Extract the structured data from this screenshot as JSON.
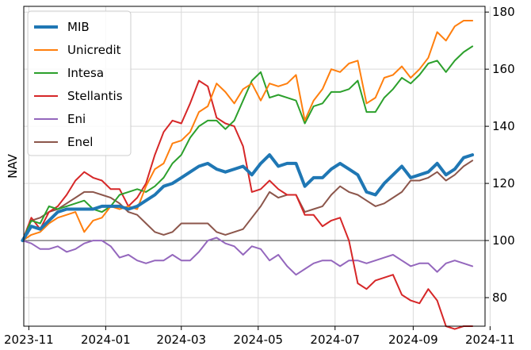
{
  "chart_data": {
    "type": "line",
    "title": "",
    "xlabel": "",
    "ylabel": "NAV",
    "ylim": [
      70,
      182
    ],
    "xlim": [
      "2023-10-28",
      "2024-10-28"
    ],
    "x_ticks": [
      "2023-11-01",
      "2024-01-01",
      "2024-03-01",
      "2024-05-01",
      "2024-07-01",
      "2024-09-01",
      "2024-11-01"
    ],
    "x_tick_labels": [
      "2023-11",
      "2024-01",
      "2024-03",
      "2024-05",
      "2024-07",
      "2024-09",
      "2024-11"
    ],
    "y_ticks": [
      80,
      100,
      120,
      140,
      160,
      180
    ],
    "y_tick_labels": [
      "80",
      "100",
      "120",
      "140",
      "160",
      "180"
    ],
    "y_axis_side": "right",
    "reference_line": 100,
    "grid": true,
    "legend": "top-left",
    "x": [
      "2023-10-27",
      "2023-11-03",
      "2023-11-10",
      "2023-11-17",
      "2023-11-24",
      "2023-12-01",
      "2023-12-08",
      "2023-12-15",
      "2023-12-22",
      "2023-12-29",
      "2024-01-05",
      "2024-01-12",
      "2024-01-19",
      "2024-01-26",
      "2024-02-02",
      "2024-02-09",
      "2024-02-16",
      "2024-02-23",
      "2024-03-01",
      "2024-03-08",
      "2024-03-15",
      "2024-03-22",
      "2024-03-29",
      "2024-04-05",
      "2024-04-12",
      "2024-04-19",
      "2024-04-26",
      "2024-05-03",
      "2024-05-10",
      "2024-05-17",
      "2024-05-24",
      "2024-05-31",
      "2024-06-07",
      "2024-06-14",
      "2024-06-21",
      "2024-06-28",
      "2024-07-05",
      "2024-07-12",
      "2024-07-19",
      "2024-07-26",
      "2024-08-02",
      "2024-08-09",
      "2024-08-16",
      "2024-08-23",
      "2024-08-30",
      "2024-09-06",
      "2024-09-13",
      "2024-09-20",
      "2024-09-27",
      "2024-10-04",
      "2024-10-11",
      "2024-10-18"
    ],
    "series": [
      {
        "name": "MIB",
        "color": "#1f77b4",
        "width": 4,
        "values": [
          100,
          105,
          104,
          107,
          110,
          111,
          111,
          111,
          111,
          112,
          112,
          112,
          111,
          112,
          114,
          116,
          119,
          120,
          122,
          124,
          126,
          127,
          125,
          124,
          125,
          126,
          123,
          127,
          130,
          126,
          127,
          127,
          119,
          122,
          122,
          125,
          127,
          125,
          123,
          117,
          116,
          120,
          123,
          126,
          122,
          123,
          124,
          127,
          123,
          125,
          129,
          130
        ]
      },
      {
        "name": "Unicredit",
        "color": "#ff7f0e",
        "width": 2,
        "values": [
          100,
          102,
          103,
          106,
          108,
          109,
          110,
          103,
          107,
          108,
          112,
          111,
          112,
          111,
          119,
          125,
          127,
          134,
          135,
          138,
          145,
          147,
          155,
          152,
          148,
          153,
          155,
          149,
          155,
          154,
          155,
          158,
          142,
          149,
          153,
          160,
          159,
          162,
          163,
          148,
          150,
          157,
          158,
          161,
          157,
          160,
          164,
          173,
          170,
          175,
          177,
          177
        ]
      },
      {
        "name": "Intesa",
        "color": "#2ca02c",
        "width": 2,
        "values": [
          100,
          107,
          106,
          112,
          111,
          112,
          113,
          114,
          111,
          110,
          112,
          116,
          117,
          118,
          117,
          119,
          122,
          127,
          130,
          136,
          140,
          142,
          142,
          139,
          142,
          149,
          156,
          159,
          150,
          151,
          150,
          149,
          141,
          147,
          148,
          152,
          152,
          153,
          156,
          145,
          145,
          150,
          153,
          157,
          155,
          158,
          162,
          163,
          159,
          163,
          166,
          168
        ]
      },
      {
        "name": "Stellantis",
        "color": "#d62728",
        "width": 2,
        "values": [
          100,
          108,
          104,
          110,
          112,
          116,
          121,
          124,
          122,
          121,
          118,
          118,
          112,
          115,
          120,
          130,
          138,
          142,
          141,
          148,
          156,
          154,
          143,
          141,
          140,
          133,
          117,
          118,
          121,
          118,
          116,
          116,
          109,
          109,
          105,
          107,
          108,
          100,
          85,
          83,
          86,
          87,
          88,
          81,
          79,
          78,
          83,
          79,
          70,
          69,
          70,
          70
        ]
      },
      {
        "name": "Eni",
        "color": "#9467bd",
        "width": 2,
        "values": [
          100,
          99,
          97,
          97,
          98,
          96,
          97,
          99,
          100,
          100,
          98,
          94,
          95,
          93,
          92,
          93,
          93,
          95,
          93,
          93,
          96,
          100,
          101,
          99,
          98,
          95,
          98,
          97,
          93,
          95,
          91,
          88,
          90,
          92,
          93,
          93,
          91,
          93,
          93,
          92,
          93,
          94,
          95,
          93,
          91,
          92,
          92,
          89,
          92,
          93,
          92,
          91
        ]
      },
      {
        "name": "Enel",
        "color": "#8c564b",
        "width": 2,
        "values": [
          100,
          107,
          108,
          110,
          111,
          113,
          115,
          117,
          117,
          116,
          115,
          113,
          110,
          109,
          106,
          103,
          102,
          103,
          106,
          106,
          106,
          106,
          103,
          102,
          103,
          104,
          108,
          112,
          117,
          115,
          116,
          116,
          110,
          111,
          112,
          116,
          119,
          117,
          116,
          114,
          112,
          113,
          115,
          117,
          121,
          121,
          122,
          124,
          121,
          123,
          126,
          128
        ]
      }
    ]
  }
}
